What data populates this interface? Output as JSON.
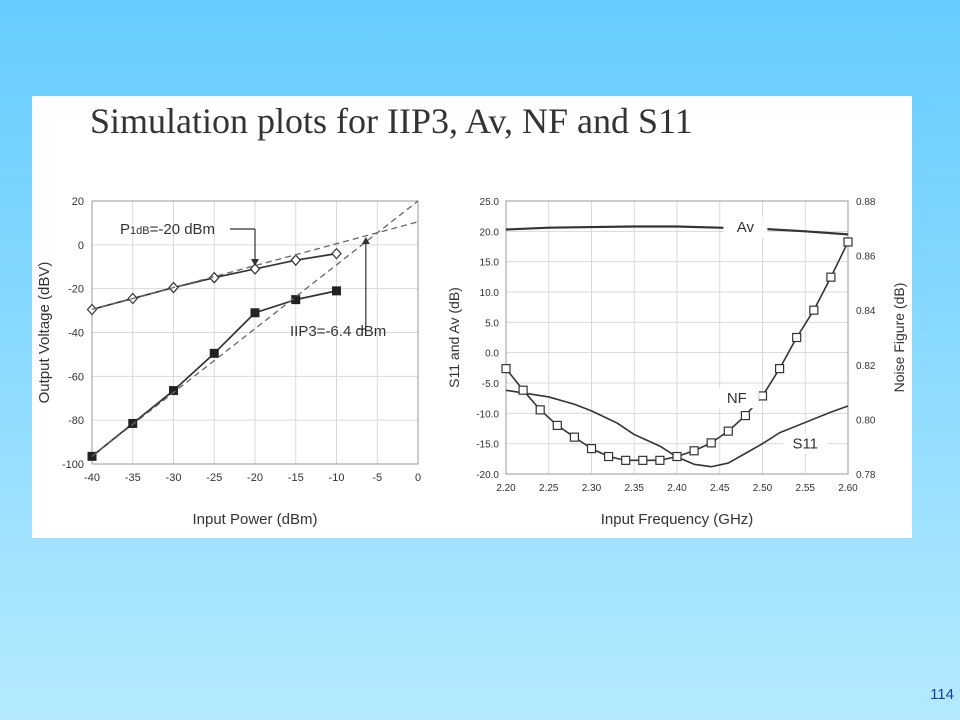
{
  "slide": {
    "title": "Simulation plots for IIP3, Av, NF and S11",
    "page_number": "114",
    "background_color": "#66ccff",
    "page_number_color": "#1a3aa8"
  },
  "chart_data": [
    {
      "type": "line",
      "xlabel": "Input Power (dBm)",
      "ylabel": "Output Voltage (dBV)",
      "xlim": [
        -40,
        0
      ],
      "ylim": [
        -100,
        20
      ],
      "xticks": [
        "-40",
        "-35",
        "-30",
        "-25",
        "-20",
        "-15",
        "-10",
        "-5",
        "0"
      ],
      "yticks": [
        "20",
        "0",
        "-20",
        "-40",
        "-60",
        "-80",
        "-100"
      ],
      "grid": true,
      "series": [
        {
          "marker": "open-diamond",
          "style": "solid",
          "x": [
            -40,
            -35,
            -30,
            -25,
            -20,
            -15,
            -10
          ],
          "y": [
            -29.5,
            -24.5,
            -19.5,
            -15,
            -11,
            -7,
            -4
          ]
        },
        {
          "marker": "filled-square",
          "style": "solid",
          "x": [
            -40,
            -35,
            -30,
            -25,
            -20,
            -15,
            -10
          ],
          "y": [
            -96.5,
            -81.5,
            -66.5,
            -49.5,
            -31,
            -25,
            -21
          ]
        },
        {
          "marker": "none",
          "style": "dashed",
          "x": [
            -40,
            0
          ],
          "y": [
            -29.5,
            10.5
          ]
        },
        {
          "marker": "none",
          "style": "dashed",
          "x": [
            -40,
            0
          ],
          "y": [
            -96.5,
            20
          ]
        }
      ],
      "annotations": [
        {
          "text": "P1dB=-20 dBm",
          "x": -20,
          "y": -11
        },
        {
          "text": "IIP3=-6.4 dBm",
          "x": -6.4,
          "y": 4.5
        }
      ]
    },
    {
      "type": "line",
      "xlabel": "Input Frequency (GHz)",
      "ylabel": "S11 and Av (dB)",
      "y2label": "Noise Figure (dB)",
      "xlim": [
        2.2,
        2.6
      ],
      "ylim": [
        -20,
        25
      ],
      "y2lim": [
        0.78,
        0.88
      ],
      "xticks": [
        "2.20",
        "2.25",
        "2.30",
        "2.35",
        "2.40",
        "2.45",
        "2.50",
        "2.55",
        "2.60"
      ],
      "yticks": [
        "25.0",
        "20.0",
        "15.0",
        "10.0",
        "5.0",
        "0.0",
        "-5.0",
        "-10.0",
        "-15.0",
        "-20.0"
      ],
      "y2ticks": [
        "0.88",
        "0.86",
        "0.84",
        "0.82",
        "0.80",
        "0.78"
      ],
      "grid": true,
      "series": [
        {
          "name": "Av",
          "axis": "left",
          "marker": "none",
          "x": [
            2.2,
            2.25,
            2.3,
            2.35,
            2.4,
            2.45,
            2.5,
            2.55,
            2.6
          ],
          "y": [
            20.3,
            20.6,
            20.7,
            20.8,
            20.8,
            20.6,
            20.4,
            20.0,
            19.5
          ]
        },
        {
          "name": "S11",
          "axis": "left",
          "marker": "none",
          "x": [
            2.2,
            2.25,
            2.28,
            2.3,
            2.33,
            2.35,
            2.38,
            2.4,
            2.42,
            2.44,
            2.46,
            2.48,
            2.5,
            2.52,
            2.55,
            2.58,
            2.6
          ],
          "y": [
            -6.2,
            -7.3,
            -8.5,
            -9.6,
            -11.6,
            -13.5,
            -15.4,
            -17.2,
            -18.4,
            -18.8,
            -18.2,
            -16.6,
            -15.0,
            -13.2,
            -11.5,
            -9.8,
            -8.8
          ]
        },
        {
          "name": "NF",
          "axis": "right",
          "marker": "open-square",
          "x": [
            2.2,
            2.22,
            2.24,
            2.26,
            2.28,
            2.3,
            2.32,
            2.34,
            2.36,
            2.38,
            2.4,
            2.42,
            2.44,
            2.46,
            2.48,
            2.5,
            2.52,
            2.54,
            2.56,
            2.58,
            2.6
          ],
          "y": [
            0.8186,
            0.8107,
            0.8035,
            0.7978,
            0.7935,
            0.7893,
            0.7864,
            0.785,
            0.785,
            0.785,
            0.7864,
            0.7885,
            0.7914,
            0.7957,
            0.8014,
            0.8086,
            0.8186,
            0.83,
            0.84,
            0.8521,
            0.865
          ]
        }
      ],
      "annotations": [
        {
          "text": "Av",
          "x": 2.48,
          "y": 20.7
        },
        {
          "text": "NF",
          "x": 2.47,
          "y": -7.5
        },
        {
          "text": "S11",
          "x": 2.55,
          "y": -15
        }
      ]
    }
  ]
}
